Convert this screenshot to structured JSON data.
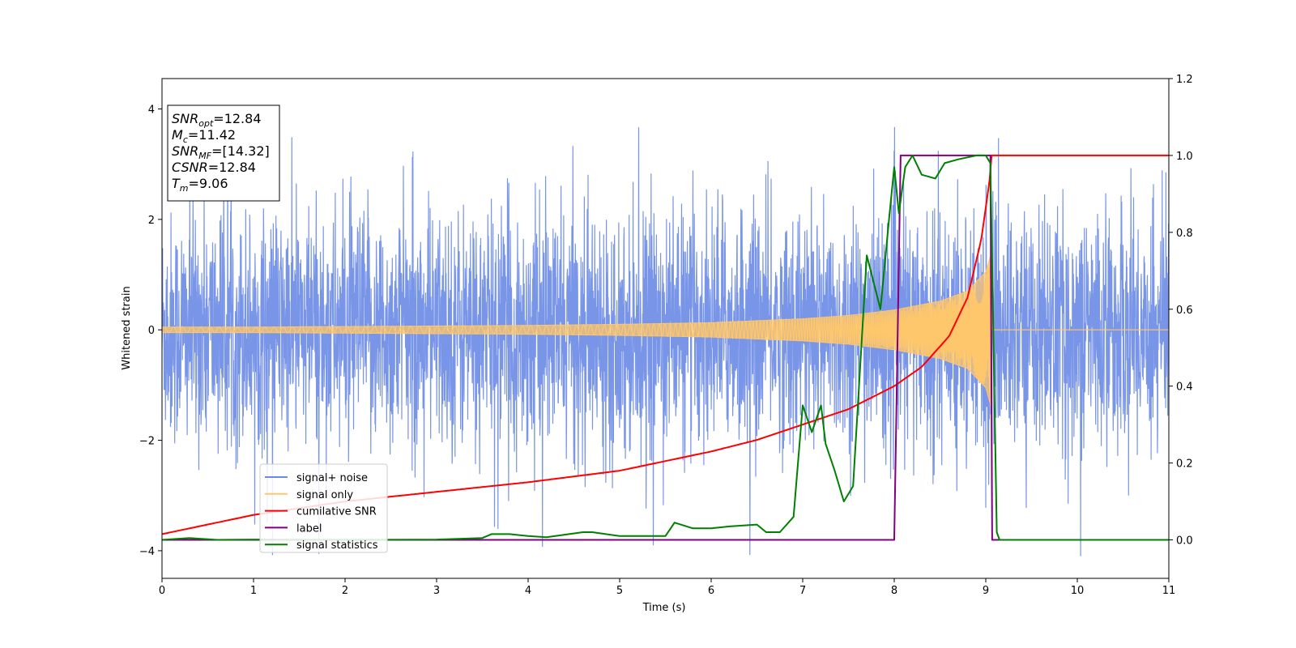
{
  "chart_data": {
    "type": "line",
    "xlabel": "Time (s)",
    "ylabel": "Whitened strain",
    "xlim": [
      0,
      11
    ],
    "ylim_left": [
      -4.5,
      4.55
    ],
    "ylim_right": [
      -0.1,
      1.2
    ],
    "x_ticks": [
      "0",
      "1",
      "2",
      "3",
      "4",
      "5",
      "6",
      "7",
      "8",
      "9",
      "10",
      "11"
    ],
    "y_left_ticks": [
      "−4",
      "−2",
      "0",
      "2",
      "4"
    ],
    "y_right_ticks": [
      "0.0",
      "0.2",
      "0.4",
      "0.6",
      "0.8",
      "1.0",
      "1.2"
    ],
    "grid": false,
    "legend_position": "lower-left",
    "annotation": [
      {
        "base": "SNR",
        "sub": "opt",
        "rest": "=12.84"
      },
      {
        "base": "M",
        "sub": "c",
        "rest": "=11.42"
      },
      {
        "base": "SNR",
        "sub": "MF",
        "rest": "=[14.32]"
      },
      {
        "base": "CSNR",
        "sub": "",
        "rest": "=12.84"
      },
      {
        "base": "T",
        "sub": "m",
        "rest": "=9.06"
      }
    ],
    "series": [
      {
        "name": "signal+ noise",
        "color": "#6a89e6",
        "axis": "left",
        "description": "noise band approx ±3, spikes to ~4.1",
        "x": [
          0,
          11
        ]
      },
      {
        "name": "signal only",
        "color": "#ffc76b",
        "axis": "left",
        "x": [
          0,
          1,
          2,
          3,
          4,
          5,
          6,
          7,
          7.5,
          8,
          8.5,
          8.8,
          9.0,
          9.06,
          9.07,
          11
        ],
        "amplitude": [
          0.05,
          0.05,
          0.06,
          0.07,
          0.08,
          0.1,
          0.13,
          0.2,
          0.26,
          0.36,
          0.52,
          0.7,
          1.05,
          1.4,
          0,
          0
        ]
      },
      {
        "name": "cumilative SNR",
        "color": "#ff0000",
        "axis": "right",
        "x": [
          0,
          1,
          2,
          3,
          4,
          5,
          6,
          6.5,
          7,
          7.5,
          8,
          8.3,
          8.6,
          8.8,
          8.95,
          9.05,
          9.06,
          11
        ],
        "y": [
          0.015,
          0.065,
          0.1,
          0.125,
          0.15,
          0.18,
          0.23,
          0.26,
          0.3,
          0.34,
          0.4,
          0.45,
          0.53,
          0.63,
          0.78,
          0.95,
          1.0,
          1.0
        ]
      },
      {
        "name": "label",
        "color": "#800080",
        "axis": "right",
        "x": [
          0,
          8.0,
          8.07,
          9.05,
          9.07,
          11
        ],
        "y": [
          0,
          0,
          1.0,
          1.0,
          0,
          0
        ]
      },
      {
        "name": "signal statistics",
        "color": "#008000",
        "axis": "right",
        "x": [
          0,
          0.3,
          0.6,
          1,
          2,
          3,
          3.5,
          3.6,
          3.8,
          4,
          4.2,
          4.6,
          4.7,
          5,
          5.5,
          5.6,
          5.8,
          6,
          6.2,
          6.5,
          6.6,
          6.75,
          6.9,
          7.0,
          7.1,
          7.2,
          7.25,
          7.35,
          7.45,
          7.55,
          7.7,
          7.85,
          7.95,
          8.0,
          8.05,
          8.12,
          8.2,
          8.3,
          8.45,
          8.55,
          8.7,
          8.9,
          9.0,
          9.05,
          9.12,
          9.15,
          11
        ],
        "y": [
          0,
          0.005,
          0.0,
          0.001,
          0.0,
          0.001,
          0.005,
          0.015,
          0.015,
          0.01,
          0.007,
          0.02,
          0.02,
          0.01,
          0.01,
          0.045,
          0.03,
          0.03,
          0.035,
          0.04,
          0.02,
          0.02,
          0.06,
          0.35,
          0.28,
          0.35,
          0.25,
          0.18,
          0.1,
          0.14,
          0.74,
          0.6,
          0.85,
          0.97,
          0.85,
          0.97,
          1.0,
          0.95,
          0.94,
          0.98,
          0.99,
          1.0,
          1.0,
          0.98,
          0.02,
          0.0,
          0.0
        ]
      }
    ]
  }
}
